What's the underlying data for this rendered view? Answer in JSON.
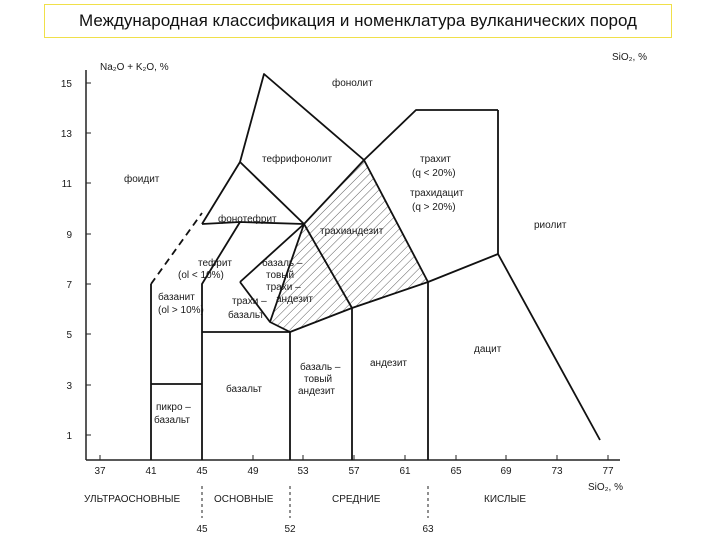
{
  "title": "Международная классификация и номенклатура вулканических пород",
  "diagram": {
    "y_axis_label": "Na₂O + K₂O, %",
    "x_axis_label": "SiO₂, %",
    "x_axis_label_top": "SiO₂, %",
    "y_ticks": [
      "15",
      "13",
      "11",
      "9",
      "7",
      "5",
      "3",
      "1"
    ],
    "x_ticks": [
      "37",
      "41",
      "45",
      "49",
      "53",
      "57",
      "61",
      "65",
      "69",
      "73",
      "77"
    ],
    "field_labels": {
      "phonolite": "фонолит",
      "tephriphonolite": "тефрифонолит",
      "foidite": "фоидит",
      "trachyte_1": "трахит",
      "trachyte_2": "(q < 20%)",
      "trachydacite_1": "трахидацит",
      "trachydacite_2": "(q > 20%)",
      "phonotephrite": "фонотефрит",
      "trachyandesite": "трахиандезит",
      "rhyolite": "риолит",
      "tephrite_1": "тефрит",
      "tephrite_2": "(ol < 10%)",
      "basanite_1": "базанит",
      "basanite_2": "(ol > 10%)",
      "bta_1": "базаль –",
      "bta_2": "товый",
      "bta_3": "трахи –",
      "bta_4": "андезит",
      "trachybasalt_1": "трахи –",
      "trachybasalt_2": "базальт",
      "dacite": "дацит",
      "andesite": "андезит",
      "basalt": "базальт",
      "basaltic_andesite_1": "базаль –",
      "basaltic_andesite_2": "товый",
      "basaltic_andesite_3": "андезит",
      "picrobasalt_1": "пикро –",
      "picrobasalt_2": "базальт"
    },
    "groups": [
      "УЛЬТРАОСНОВНЫЕ",
      "ОСНОВНЫЕ",
      "СРЕДНИЕ",
      "КИСЛЫЕ"
    ],
    "group_boundaries": [
      "45",
      "52",
      "63"
    ]
  }
}
